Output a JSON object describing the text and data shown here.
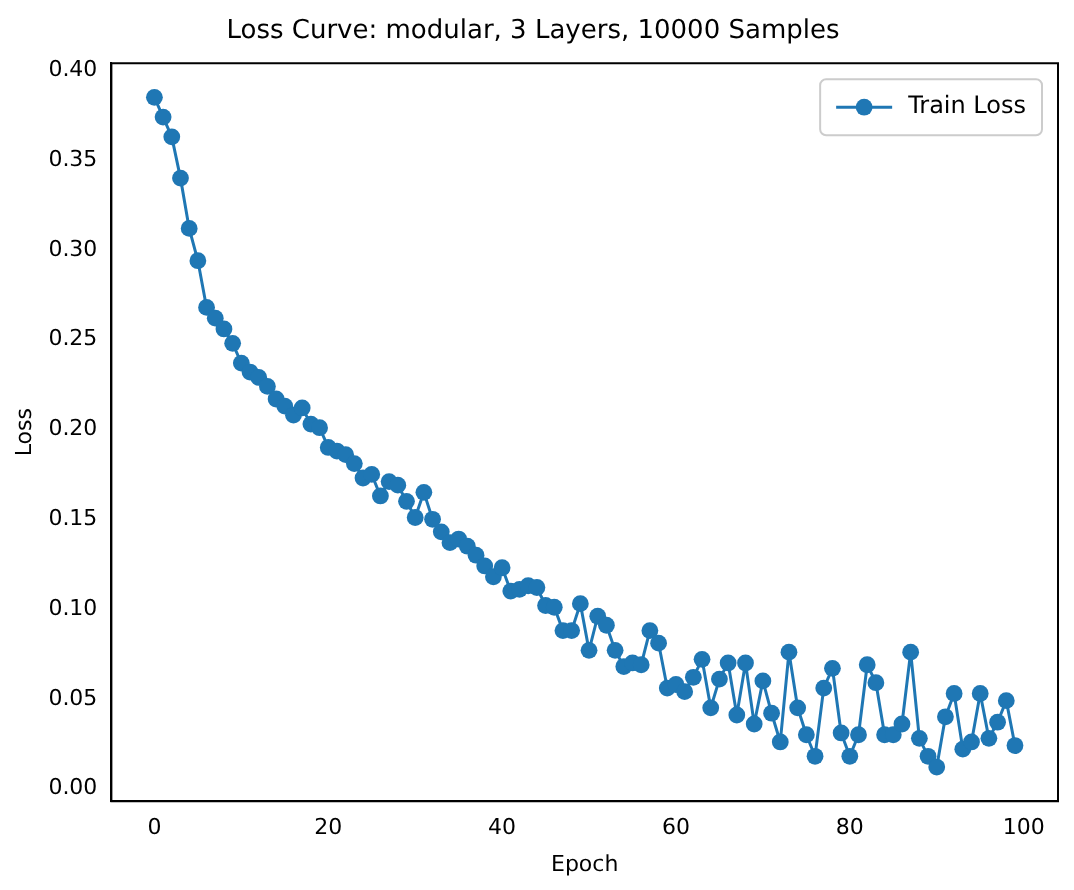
{
  "chart_data": {
    "type": "line",
    "title": "Loss Curve: modular, 3 Layers, 10000 Samples",
    "xlabel": "Epoch",
    "ylabel": "Loss",
    "x": [
      0,
      1,
      2,
      3,
      4,
      5,
      6,
      7,
      8,
      9,
      10,
      11,
      12,
      13,
      14,
      15,
      16,
      17,
      18,
      19,
      20,
      21,
      22,
      23,
      24,
      25,
      26,
      27,
      28,
      29,
      30,
      31,
      32,
      33,
      34,
      35,
      36,
      37,
      38,
      39,
      40,
      41,
      42,
      43,
      44,
      45,
      46,
      47,
      48,
      49,
      50,
      51,
      52,
      53,
      54,
      55,
      56,
      57,
      58,
      59,
      60,
      61,
      62,
      63,
      64,
      65,
      66,
      67,
      68,
      69,
      70,
      71,
      72,
      73,
      74,
      75,
      76,
      77,
      78,
      79,
      80,
      81,
      82,
      83,
      84,
      85,
      86,
      87,
      88,
      89,
      90,
      91,
      92,
      93,
      94,
      95,
      96,
      97,
      98,
      99
    ],
    "series": [
      {
        "name": "Train Loss",
        "color": "#1f77b4",
        "values": [
          0.385,
          0.374,
          0.363,
          0.34,
          0.312,
          0.294,
          0.268,
          0.262,
          0.256,
          0.248,
          0.237,
          0.232,
          0.229,
          0.224,
          0.217,
          0.213,
          0.208,
          0.212,
          0.203,
          0.201,
          0.19,
          0.188,
          0.186,
          0.181,
          0.173,
          0.175,
          0.163,
          0.171,
          0.169,
          0.16,
          0.151,
          0.165,
          0.15,
          0.143,
          0.137,
          0.139,
          0.135,
          0.13,
          0.124,
          0.118,
          0.123,
          0.11,
          0.111,
          0.113,
          0.112,
          0.102,
          0.101,
          0.088,
          0.088,
          0.103,
          0.077,
          0.096,
          0.091,
          0.077,
          0.068,
          0.07,
          0.069,
          0.088,
          0.081,
          0.056,
          0.058,
          0.054,
          0.062,
          0.072,
          0.045,
          0.061,
          0.07,
          0.041,
          0.07,
          0.036,
          0.06,
          0.042,
          0.026,
          0.076,
          0.045,
          0.03,
          0.018,
          0.056,
          0.067,
          0.031,
          0.018,
          0.03,
          0.069,
          0.059,
          0.03,
          0.03,
          0.036,
          0.076,
          0.028,
          0.018,
          0.012,
          0.04,
          0.053,
          0.022,
          0.026,
          0.053,
          0.028,
          0.037,
          0.049,
          0.024
        ]
      }
    ],
    "xlim": [
      -4.95,
      103.95
    ],
    "xticks": [
      0,
      20,
      40,
      60,
      80,
      100
    ],
    "ylim": [
      -0.007,
      0.404
    ],
    "yticks": [
      {
        "value": 0,
        "label": "0.00"
      },
      {
        "value": 0.05,
        "label": "0.05"
      },
      {
        "value": 0.1,
        "label": "0.10"
      },
      {
        "value": 0.15,
        "label": "0.15"
      },
      {
        "value": 0.2,
        "label": "0.20"
      },
      {
        "value": 0.25,
        "label": "0.25"
      },
      {
        "value": 0.3,
        "label": "0.30"
      },
      {
        "value": 0.35,
        "label": "0.35"
      },
      {
        "value": 0.4,
        "label": "0.40"
      }
    ],
    "legend": "top right",
    "marker": "circle",
    "line_style": "solid",
    "grid": false
  }
}
